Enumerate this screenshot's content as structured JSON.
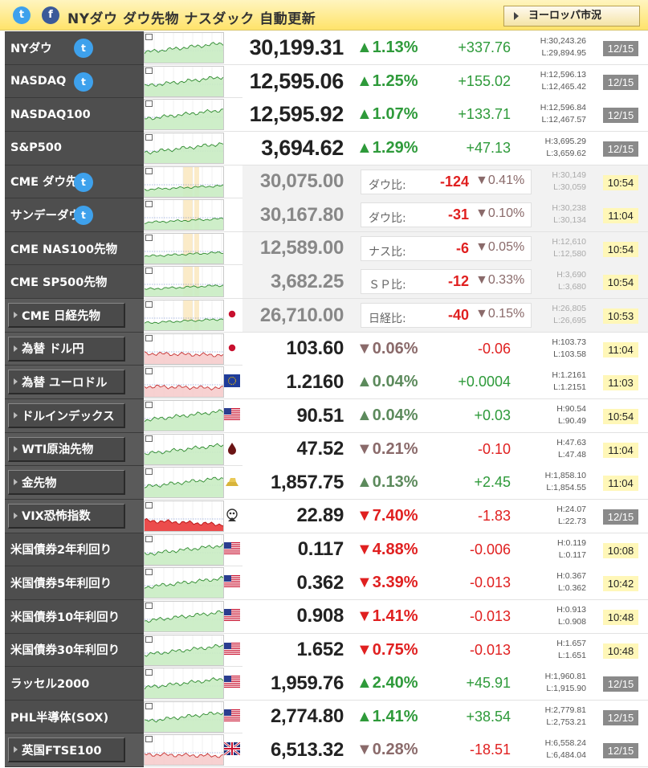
{
  "header": {
    "title": "NYダウ ダウ先物 ナスダック 自動更新",
    "europe_button": "ヨーロッパ市況",
    "twitter_glyph": "t",
    "facebook_glyph": "f"
  },
  "colors": {
    "up": "#2e9a3a",
    "down": "#e02020",
    "header_bg": "#ffe36a",
    "name_bg": "#4e4e4e"
  },
  "rows": [
    {
      "name": "NYダウ",
      "tw": true,
      "box": false,
      "flag": "",
      "price": "30,199.31",
      "big": true,
      "pct": "▲1.13%",
      "dir": "up",
      "chg": "+337.76",
      "high": "H:30,243.26",
      "low": "L:29,894.95",
      "time": "12/15",
      "time_style": "date",
      "chart": "up"
    },
    {
      "name": "NASDAQ",
      "tw": true,
      "box": false,
      "flag": "",
      "price": "12,595.06",
      "big": true,
      "pct": "▲1.25%",
      "dir": "up",
      "chg": "+155.02",
      "high": "H:12,596.13",
      "low": "L:12,465.42",
      "time": "12/15",
      "time_style": "date",
      "chart": "up"
    },
    {
      "name": "NASDAQ100",
      "tw": false,
      "box": false,
      "flag": "",
      "price": "12,595.92",
      "big": true,
      "pct": "▲1.07%",
      "dir": "up",
      "chg": "+133.71",
      "high": "H:12,596.84",
      "low": "L:12,467.57",
      "time": "12/15",
      "time_style": "date",
      "chart": "up"
    },
    {
      "name": "S&P500",
      "tw": false,
      "box": false,
      "flag": "",
      "price": "3,694.62",
      "big": true,
      "pct": "▲1.29%",
      "dir": "up",
      "chg": "+47.13",
      "high": "H:3,695.29",
      "low": "L:3,659.62",
      "time": "12/15",
      "time_style": "date",
      "chart": "up"
    },
    {
      "name": "CME ダウ先物",
      "tw": true,
      "box": false,
      "flag": "",
      "price": "30,075.00",
      "cme": true,
      "comp_label": "ダウ比:",
      "comp_diff": "-124",
      "comp_pct": "▼0.41%",
      "high": "H:30,149",
      "low": "L:30,059",
      "time": "10:54",
      "time_style": "now",
      "chart": "flat"
    },
    {
      "name": "サンデーダウ",
      "tw": true,
      "box": false,
      "flag": "",
      "price": "30,167.80",
      "cme": true,
      "comp_label": "ダウ比:",
      "comp_diff": "-31",
      "comp_pct": "▼0.10%",
      "high": "H:30,238",
      "low": "L:30,134",
      "time": "11:04",
      "time_style": "now",
      "chart": "flat"
    },
    {
      "name": "CME NAS100先物",
      "tw": false,
      "box": false,
      "flag": "",
      "price": "12,589.00",
      "cme": true,
      "comp_label": "ナス比:",
      "comp_diff": "-6",
      "comp_pct": "▼0.05%",
      "high": "H:12,610",
      "low": "L:12,580",
      "time": "10:54",
      "time_style": "now",
      "chart": "flat"
    },
    {
      "name": "CME SP500先物",
      "tw": false,
      "box": false,
      "flag": "",
      "price": "3,682.25",
      "cme": true,
      "comp_label": "ＳＰ比:",
      "comp_diff": "-12",
      "comp_pct": "▼0.33%",
      "high": "H:3,690",
      "low": "L:3,680",
      "time": "10:54",
      "time_style": "now",
      "chart": "flat"
    },
    {
      "name": "CME 日経先物",
      "tw": false,
      "box": true,
      "flag": "jp",
      "price": "26,710.00",
      "cme": true,
      "comp_label": "日経比:",
      "comp_diff": "-40",
      "comp_pct": "▼0.15%",
      "high": "H:26,805",
      "low": "L:26,695",
      "time": "10:53",
      "time_style": "now",
      "chart": "flat"
    },
    {
      "name": "為替 ドル円",
      "tw": false,
      "box": true,
      "flag": "jp",
      "price": "103.60",
      "pct": "▼0.06%",
      "dir": "dn2",
      "chg": "-0.06",
      "chgdir": "dn",
      "high": "H:103.73",
      "low": "L:103.58",
      "time": "11:04",
      "time_style": "now",
      "chart": "down"
    },
    {
      "name": "為替 ユーロドル",
      "tw": false,
      "box": true,
      "flag": "eu",
      "price": "1.2160",
      "pct": "▲0.04%",
      "dir": "up2",
      "chg": "+0.0004",
      "chgdir": "up",
      "high": "H:1.2161",
      "low": "L:1.2151",
      "time": "11:03",
      "time_style": "now",
      "chart": "down"
    },
    {
      "name": "ドルインデックス",
      "tw": false,
      "box": true,
      "flag": "us",
      "price": "90.51",
      "pct": "▲0.04%",
      "dir": "up2",
      "chg": "+0.03",
      "chgdir": "up",
      "high": "H:90.54",
      "low": "L:90.49",
      "time": "10:54",
      "time_style": "now",
      "chart": "up"
    },
    {
      "name": "WTI原油先物",
      "tw": false,
      "box": true,
      "flag": "oil",
      "price": "47.52",
      "pct": "▼0.21%",
      "dir": "dn2",
      "chg": "-0.10",
      "chgdir": "dn",
      "high": "H:47.63",
      "low": "L:47.48",
      "time": "11:04",
      "time_style": "now",
      "chart": "up"
    },
    {
      "name": "金先物",
      "tw": false,
      "box": true,
      "flag": "gold",
      "price": "1,857.75",
      "pct": "▲0.13%",
      "dir": "up2",
      "chg": "+2.45",
      "chgdir": "up",
      "high": "H:1,858.10",
      "low": "L:1,854.55",
      "time": "11:04",
      "time_style": "now",
      "chart": "up"
    },
    {
      "name": "VIX恐怖指数",
      "tw": false,
      "box": true,
      "flag": "vix",
      "price": "22.89",
      "pct": "▼7.40%",
      "dir": "dn",
      "chg": "-1.83",
      "chgdir": "dn",
      "high": "H:24.07",
      "low": "L:22.73",
      "time": "12/15",
      "time_style": "date",
      "chart": "red"
    },
    {
      "name": "米国債券2年利回り",
      "tw": false,
      "box": false,
      "flag": "us",
      "price": "0.117",
      "pct": "▼4.88%",
      "dir": "dn",
      "chg": "-0.006",
      "chgdir": "dn",
      "high": "H:0.119",
      "low": "L:0.117",
      "time": "10:08",
      "time_style": "now",
      "chart": "up"
    },
    {
      "name": "米国債券5年利回り",
      "tw": false,
      "box": false,
      "flag": "us",
      "price": "0.362",
      "pct": "▼3.39%",
      "dir": "dn",
      "chg": "-0.013",
      "chgdir": "dn",
      "high": "H:0.367",
      "low": "L:0.362",
      "time": "10:42",
      "time_style": "now",
      "chart": "up"
    },
    {
      "name": "米国債券10年利回り",
      "tw": false,
      "box": false,
      "flag": "us",
      "price": "0.908",
      "pct": "▼1.41%",
      "dir": "dn",
      "chg": "-0.013",
      "chgdir": "dn",
      "high": "H:0.913",
      "low": "L:0.908",
      "time": "10:48",
      "time_style": "now",
      "chart": "up"
    },
    {
      "name": "米国債券30年利回り",
      "tw": false,
      "box": false,
      "flag": "us",
      "price": "1.652",
      "pct": "▼0.75%",
      "dir": "dn",
      "chg": "-0.013",
      "chgdir": "dn",
      "high": "H:1.657",
      "low": "L:1.651",
      "time": "10:48",
      "time_style": "now",
      "chart": "up"
    },
    {
      "name": "ラッセル2000",
      "tw": false,
      "box": false,
      "flag": "us",
      "price": "1,959.76",
      "pct": "▲2.40%",
      "dir": "up",
      "chg": "+45.91",
      "chgdir": "up",
      "high": "H:1,960.81",
      "low": "L:1,915.90",
      "time": "12/15",
      "time_style": "date",
      "chart": "up"
    },
    {
      "name": "PHL半導体(SOX)",
      "tw": false,
      "box": false,
      "flag": "us",
      "price": "2,774.80",
      "pct": "▲1.41%",
      "dir": "up",
      "chg": "+38.54",
      "chgdir": "up",
      "high": "H:2,779.81",
      "low": "L:2,753.21",
      "time": "12/15",
      "time_style": "date",
      "chart": "up"
    },
    {
      "name": "英国FTSE100",
      "tw": false,
      "box": true,
      "flag": "uk",
      "price": "6,513.32",
      "pct": "▼0.28%",
      "dir": "dn2",
      "chg": "-18.51",
      "chgdir": "dn",
      "high": "H:6,558.24",
      "low": "L:6,484.04",
      "time": "12/15",
      "time_style": "date",
      "chart": "down"
    }
  ]
}
